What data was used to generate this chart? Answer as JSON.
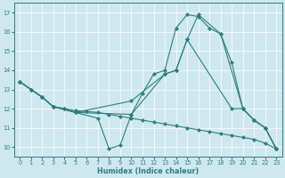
{
  "xlabel": "Humidex (Indice chaleur)",
  "xlim": [
    -0.5,
    23.5
  ],
  "ylim": [
    9.5,
    17.5
  ],
  "yticks": [
    10,
    11,
    12,
    13,
    14,
    15,
    16,
    17
  ],
  "xticks": [
    0,
    1,
    2,
    3,
    4,
    5,
    6,
    7,
    8,
    9,
    10,
    11,
    12,
    13,
    14,
    15,
    16,
    17,
    18,
    19,
    20,
    21,
    22,
    23
  ],
  "background_color": "#cfe8f0",
  "line_color": "#2d7d7d",
  "grid_color": "#ffffff",
  "line1_x": [
    0,
    1,
    2,
    3,
    4,
    5,
    6,
    7,
    8,
    9,
    10,
    11,
    12,
    13,
    14,
    15,
    16,
    17,
    18,
    19,
    20,
    21,
    22,
    23
  ],
  "line1_y": [
    13.4,
    13.0,
    12.6,
    12.1,
    12.0,
    11.9,
    11.85,
    11.8,
    11.7,
    11.6,
    11.5,
    11.4,
    11.3,
    11.2,
    11.1,
    11.0,
    10.9,
    10.8,
    10.7,
    10.6,
    10.5,
    10.4,
    10.2,
    9.9
  ],
  "line2_x": [
    0,
    1,
    2,
    3,
    4,
    5,
    10,
    11,
    12,
    13,
    14,
    15,
    16,
    17,
    18,
    19,
    20,
    21,
    22,
    23
  ],
  "line2_y": [
    13.4,
    13.0,
    12.6,
    12.1,
    12.0,
    11.8,
    11.7,
    12.8,
    13.8,
    14.0,
    16.2,
    16.9,
    16.8,
    16.2,
    15.9,
    14.4,
    12.0,
    11.4,
    11.0,
    9.9
  ],
  "line3_x": [
    0,
    2,
    3,
    7,
    8,
    9,
    10,
    13,
    14,
    15,
    16,
    18,
    20,
    21,
    22,
    23
  ],
  "line3_y": [
    13.4,
    12.6,
    12.1,
    11.5,
    9.9,
    10.1,
    11.7,
    13.8,
    14.0,
    15.6,
    16.9,
    15.9,
    12.0,
    11.4,
    11.0,
    9.9
  ],
  "line4_x": [
    0,
    2,
    3,
    5,
    10,
    13,
    14,
    15,
    19,
    20,
    21,
    22,
    23
  ],
  "line4_y": [
    13.4,
    12.6,
    12.1,
    11.8,
    12.4,
    13.8,
    14.0,
    15.6,
    12.0,
    12.0,
    11.4,
    11.0,
    9.9
  ]
}
